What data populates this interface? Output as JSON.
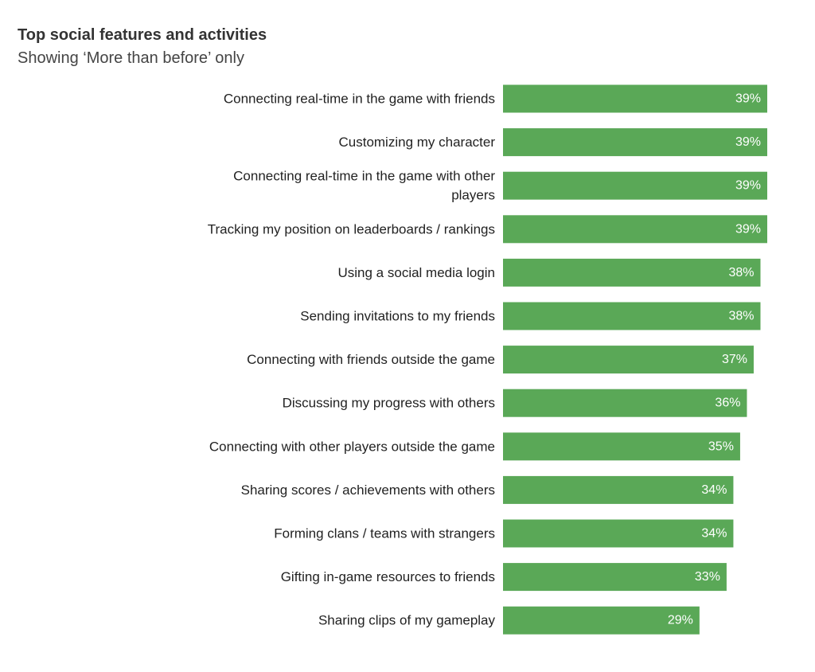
{
  "chart_data": {
    "type": "bar",
    "orientation": "horizontal",
    "title": "Top social features and activities",
    "subtitle": "Showing ‘More than before’ only",
    "bar_color": "#5aa857",
    "categories": [
      "Connecting real-time in the game with friends",
      "Customizing my character",
      "Connecting real-time in the game with other players",
      "Tracking my position on leaderboards / rankings",
      "Using a social media login",
      "Sending invitations to my friends",
      "Connecting with friends outside the game",
      "Discussing my progress with others",
      "Connecting with other players outside the game",
      "Sharing scores / achievements with others",
      "Forming clans / teams with strangers",
      "Gifting in-game resources to friends",
      "Sharing clips of my gameplay"
    ],
    "category_label_lines": [
      [
        "Connecting real-time in the game with friends"
      ],
      [
        "Customizing my character"
      ],
      [
        "Connecting real-time in the game with other",
        "players"
      ],
      [
        "Tracking my position on leaderboards / rankings"
      ],
      [
        "Using a social media login"
      ],
      [
        "Sending invitations to my friends"
      ],
      [
        "Connecting with friends outside the game"
      ],
      [
        "Discussing my progress with others"
      ],
      [
        "Connecting with other players outside the game"
      ],
      [
        "Sharing scores / achievements with others"
      ],
      [
        "Forming clans / teams with strangers"
      ],
      [
        "Gifting in-game resources to friends"
      ],
      [
        "Sharing clips of my gameplay"
      ]
    ],
    "values": [
      39,
      39,
      39,
      39,
      38,
      38,
      37,
      36,
      35,
      34,
      34,
      33,
      29
    ],
    "value_labels": [
      "39%",
      "39%",
      "39%",
      "39%",
      "38%",
      "38%",
      "37%",
      "36%",
      "35%",
      "34%",
      "34%",
      "33%",
      "29%"
    ],
    "unit": "%",
    "xlim": [
      0,
      39
    ],
    "grid": false,
    "legend": "none"
  }
}
